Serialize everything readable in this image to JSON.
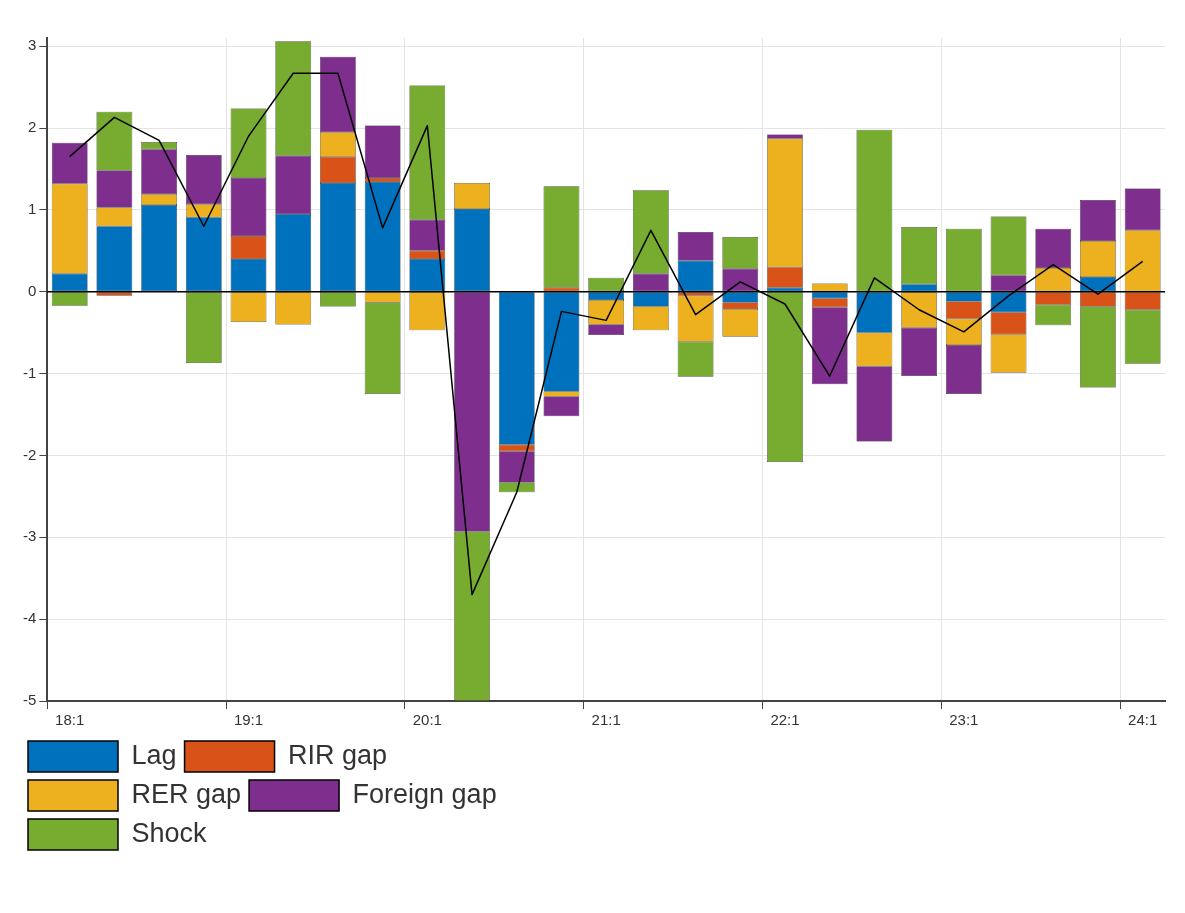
{
  "chart_data": {
    "type": "bar",
    "stacked": true,
    "categories": [
      "18:1",
      null,
      null,
      null,
      "19:1",
      null,
      null,
      null,
      "20:1",
      null,
      null,
      null,
      "21:1",
      null,
      null,
      null,
      "22:1",
      null,
      null,
      null,
      "23:1",
      null,
      null,
      null,
      "24:1"
    ],
    "series": [
      {
        "name": "Lag",
        "color": "#0072bd",
        "values": [
          0.22,
          0.8,
          1.06,
          0.91,
          0.4,
          0.95,
          1.33,
          1.34,
          0.4,
          1.01,
          -1.87,
          -1.22,
          -0.1,
          -0.18,
          0.38,
          -0.13,
          0.05,
          -0.08,
          -0.5,
          0.09,
          -0.12,
          -0.25,
          null,
          0.18,
          null
        ]
      },
      {
        "name": "RIR gap",
        "color": "#d95319",
        "values": [
          null,
          -0.05,
          null,
          null,
          0.28,
          null,
          0.32,
          0.05,
          0.1,
          null,
          -0.08,
          0.05,
          null,
          null,
          -0.05,
          -0.08,
          0.25,
          -0.11,
          null,
          null,
          -0.21,
          -0.27,
          -0.16,
          -0.18,
          -0.22
        ]
      },
      {
        "name": "RER gap",
        "color": "#edb120",
        "values": [
          1.1,
          0.23,
          0.13,
          0.16,
          -0.37,
          -0.4,
          0.3,
          -0.13,
          -0.47,
          0.32,
          null,
          -0.06,
          -0.3,
          -0.29,
          -0.56,
          -0.34,
          1.57,
          0.1,
          -0.41,
          -0.44,
          -0.32,
          -0.47,
          0.29,
          0.44,
          0.75
        ]
      },
      {
        "name": "Foreign gap",
        "color": "#7e2f8e",
        "values": [
          0.5,
          0.45,
          0.55,
          0.6,
          0.71,
          0.71,
          0.92,
          0.64,
          0.38,
          -2.93,
          -0.38,
          -0.24,
          -0.13,
          0.22,
          0.35,
          0.28,
          0.05,
          -0.94,
          -0.92,
          -0.59,
          -0.6,
          0.2,
          0.48,
          0.5,
          0.51
        ]
      },
      {
        "name": "Shock",
        "color": "#77ac30",
        "values": [
          -0.17,
          0.72,
          0.09,
          -0.87,
          0.85,
          1.4,
          -0.18,
          -1.12,
          1.64,
          -2.07,
          -0.12,
          1.24,
          0.17,
          1.02,
          -0.43,
          0.39,
          -2.08,
          null,
          1.98,
          0.7,
          0.77,
          0.72,
          -0.25,
          -0.99,
          -0.66
        ]
      },
      {
        "type": "line",
        "color": "#000000",
        "values": [
          1.65,
          2.13,
          1.85,
          0.8,
          1.9,
          2.67,
          2.67,
          0.78,
          2.03,
          -3.7,
          -2.45,
          -0.24,
          -0.35,
          0.75,
          -0.28,
          0.12,
          -0.15,
          -1.03,
          0.17,
          -0.22,
          -0.49,
          -0.05,
          0.33,
          -0.03,
          0.37
        ]
      }
    ],
    "ylim": [
      -5,
      3.1
    ],
    "yticks": [
      -5,
      -4,
      -3,
      -2,
      -1,
      0,
      1,
      2,
      3
    ],
    "ref_lines": [
      {
        "axis": "y",
        "value": 0,
        "color": "#000000"
      }
    ],
    "grid": true,
    "legend": "bottom",
    "marker": "none"
  }
}
